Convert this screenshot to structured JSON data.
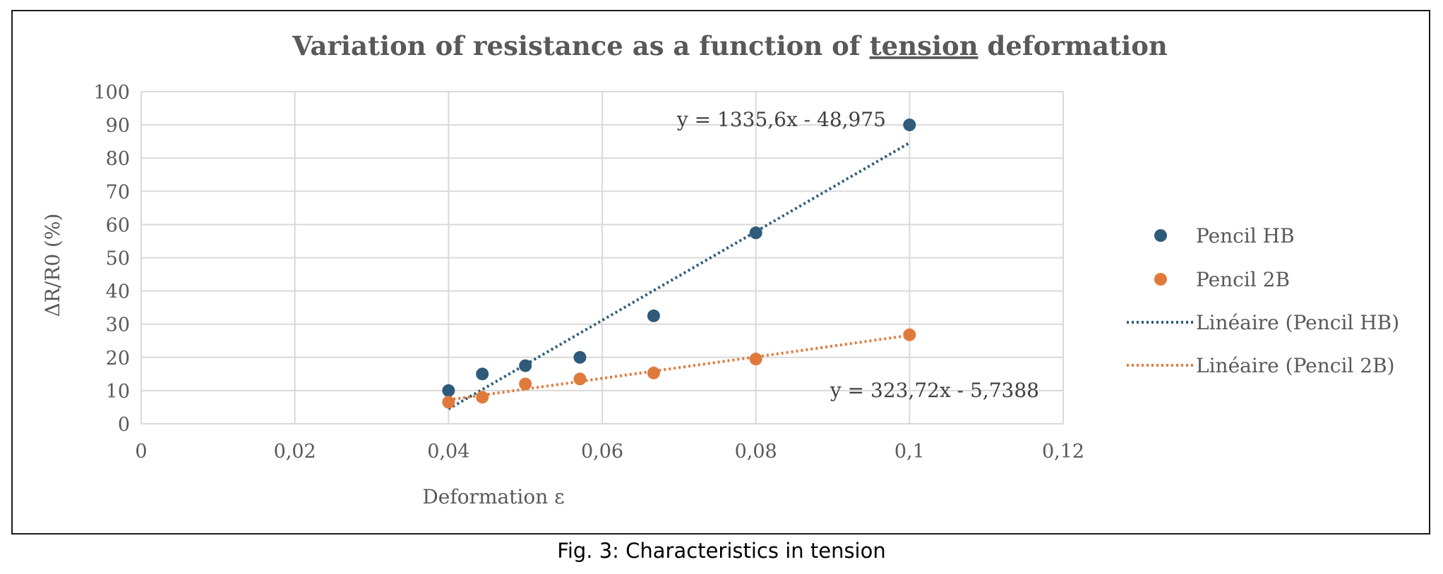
{
  "caption": "Fig. 3: Characteristics in tension",
  "chart_data": {
    "type": "scatter",
    "title": "Variation of resistance as a function of tension deformation",
    "title_parts": {
      "before": "Variation of resistance as a function of ",
      "underlined": "tension",
      "after": " deformation"
    },
    "xlabel": "Deformation ε",
    "ylabel": "ΔR/R0 (%)",
    "xlim": [
      0,
      0.12
    ],
    "ylim": [
      0,
      100
    ],
    "x_ticks": [
      0,
      0.02,
      0.04,
      0.06,
      0.08,
      0.1,
      0.12
    ],
    "x_tick_labels": [
      "0",
      "0,02",
      "0,04",
      "0,06",
      "0,08",
      "0,1",
      "0,12"
    ],
    "y_ticks": [
      0,
      10,
      20,
      30,
      40,
      50,
      60,
      70,
      80,
      90,
      100
    ],
    "y_tick_labels": [
      "0",
      "10",
      "20",
      "30",
      "40",
      "50",
      "60",
      "70",
      "80",
      "90",
      "100"
    ],
    "grid": true,
    "legend_position": "right",
    "series": [
      {
        "name": "Pencil HB",
        "color": "#2e5b7a",
        "x": [
          0.04,
          0.0444,
          0.05,
          0.0571,
          0.0667,
          0.08,
          0.1
        ],
        "y": [
          10,
          15,
          17.5,
          20,
          32.5,
          57.5,
          90
        ]
      },
      {
        "name": "Pencil 2B",
        "color": "#e07a3c",
        "x": [
          0.04,
          0.0444,
          0.05,
          0.0571,
          0.0667,
          0.08,
          0.1
        ],
        "y": [
          6.5,
          8,
          12,
          13.5,
          15.3,
          19.5,
          26.8
        ]
      }
    ],
    "trendlines": [
      {
        "name": "Linéaire (Pencil HB)",
        "color": "#2e5b7a",
        "slope": 1335.6,
        "intercept": -48.975,
        "x_range": [
          0.04,
          0.1
        ],
        "equation": "y = 1335,6x - 48,975"
      },
      {
        "name": "Linéaire (Pencil 2B)",
        "color": "#e07a3c",
        "slope": 323.72,
        "intercept": -5.7388,
        "x_range": [
          0.04,
          0.1
        ],
        "equation": "y = 323,72x - 5,7388"
      }
    ]
  }
}
